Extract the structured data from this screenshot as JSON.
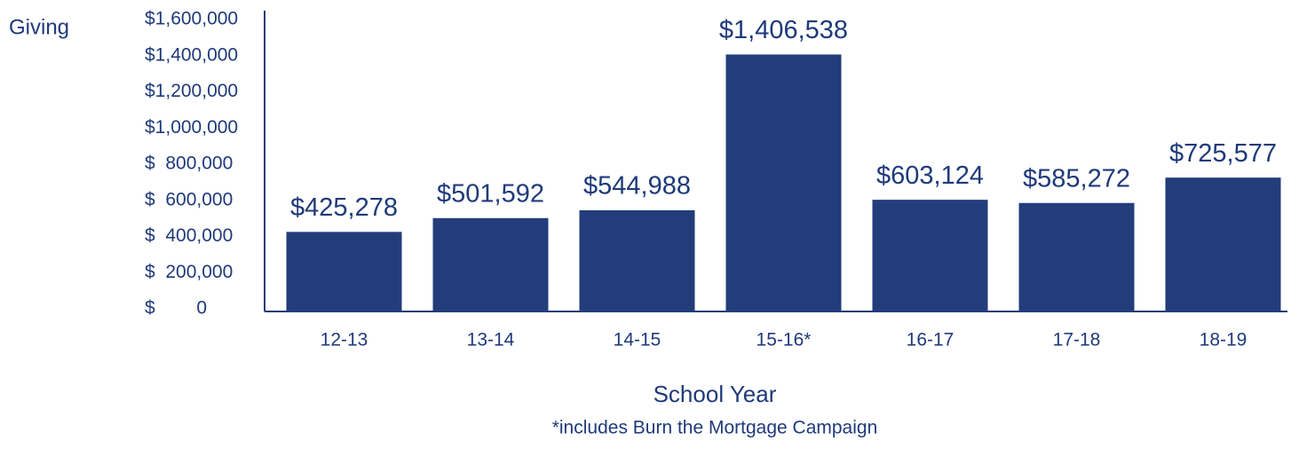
{
  "chart_data": {
    "type": "bar",
    "y_label": "Giving",
    "x_label": "School Year",
    "annotation": "*includes Burn the Mortgage Campaign",
    "categories": [
      "12-13",
      "13-14",
      "14-15",
      "15-16*",
      "16-17",
      "17-18",
      "18-19"
    ],
    "values": [
      425278,
      501592,
      544988,
      1406538,
      603124,
      585272,
      725577
    ],
    "value_labels": [
      "$425,278",
      "$501,592",
      "$544,988",
      "$1,406,538",
      "$603,124",
      "$585,272",
      "$725,577"
    ],
    "color": "#223d7a",
    "ylim": [
      0,
      1600000
    ],
    "yticks": [
      {
        "value": 0,
        "label": "$        0"
      },
      {
        "value": 200000,
        "label": "$  200,000"
      },
      {
        "value": 400000,
        "label": "$  400,000"
      },
      {
        "value": 600000,
        "label": "$  600,000"
      },
      {
        "value": 800000,
        "label": "$  800,000"
      },
      {
        "value": 1000000,
        "label": "$1,000,000"
      },
      {
        "value": 1200000,
        "label": "$1,200,000"
      },
      {
        "value": 1400000,
        "label": "$1,400,000"
      },
      {
        "value": 1600000,
        "label": "$1,600,000"
      }
    ]
  }
}
